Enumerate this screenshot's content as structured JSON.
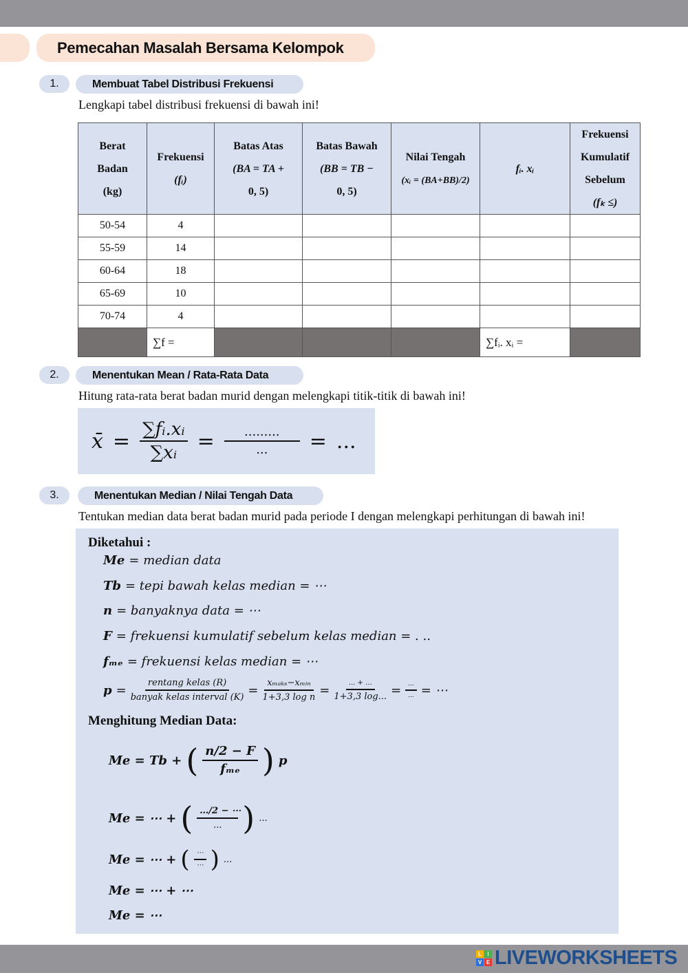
{
  "title": "Pemecahan Masalah Bersama Kelompok",
  "sections": [
    {
      "number": "1.",
      "label": "Membuat Tabel Distribusi Frekuensi",
      "instruction": "Lengkapi tabel distribusi frekuensi di bawah ini!"
    },
    {
      "number": "2.",
      "label": "Menentukan Mean / Rata-Rata Data",
      "instruction": "Hitung rata-rata berat badan murid dengan melengkapi titik-titik di bawah ini!"
    },
    {
      "number": "3.",
      "label": "Menentukan Median / Nilai Tengah Data",
      "instruction": "Tentukan median data berat badan murid pada periode I dengan melengkapi perhitungan di bawah ini!"
    }
  ],
  "table": {
    "headers": [
      [
        "Berat",
        "Badan",
        "(kg)"
      ],
      [
        "Frekuensi",
        "(fᵢ)"
      ],
      [
        "Batas Atas",
        "(BA = TA +",
        "0, 5)"
      ],
      [
        "Batas Bawah",
        "(BB = TB −",
        "0, 5)"
      ],
      [
        "Nilai Tengah",
        "(xᵢ = (BA+BB)/2)"
      ],
      [
        "fᵢ. xᵢ"
      ],
      [
        "Frekuensi",
        "Kumulatif",
        "Sebelum",
        "(fₖ ≤)"
      ]
    ],
    "rows": [
      [
        "50-54",
        "4"
      ],
      [
        "55-59",
        "14"
      ],
      [
        "60-64",
        "18"
      ],
      [
        "65-69",
        "10"
      ],
      [
        "70-74",
        "4"
      ]
    ],
    "sum_f": "∑f =",
    "sum_fx": "∑fᵢ. xᵢ ="
  },
  "mean": {
    "lhs": "x̄",
    "eq": "=",
    "num": "∑fᵢ.xᵢ",
    "den": "∑xᵢ",
    "num2": ".........",
    "den2": "...",
    "result": "..."
  },
  "median": {
    "known_label": "Diketahui :",
    "known": [
      {
        "sym": "Me",
        "text": "= median data"
      },
      {
        "sym": "Tb",
        "text": "= tepi bawah kelas median = ⋯"
      },
      {
        "sym": "n",
        "text": "=  banyaknya data  = ⋯"
      },
      {
        "sym": "F",
        "text": "=  frekuensi kumulatif sebelum kelas median  = . .."
      },
      {
        "sym": "fₘₑ",
        "text": "= frekuensi kelas median = ⋯"
      }
    ],
    "p": {
      "sym": "p",
      "f1n": "rentang kelas (R)",
      "f1d": "banyak kelas interval (K)",
      "f2n": "xₘₐₖₛ−xₘᵢₙ",
      "f2d": "1+3,3 log n",
      "f3n": "... + ...",
      "f3d": "1+3,3 log...",
      "f4n": "...",
      "f4d": "...",
      "end": "= ⋯"
    },
    "calc_label": "Menghitung Median Data:",
    "steps": [
      {
        "lhs": "Me = Tb +",
        "n": "n/2 − F",
        "d": "fₘₑ",
        "tail": "p"
      },
      {
        "lhs": "Me = ⋯ +",
        "n": "…/2 − ⋯",
        "d": "...",
        "tail": "..."
      },
      {
        "lhs": "Me = ⋯ +",
        "n": "⋯",
        "d": "⋯",
        "tail": "..."
      },
      {
        "lhs": "Me = ⋯ + ⋯"
      },
      {
        "lhs": "Me = ⋯"
      }
    ]
  },
  "footer": {
    "logo_text": "LIVEWORKSHEETS",
    "logo_tiles": [
      "L",
      "I",
      "V",
      "E"
    ]
  },
  "colors": {
    "topbar": "#959599",
    "title_pill": "#fbe3d5",
    "section_pill": "#d8e0ef",
    "box": "#d9e1f0",
    "sum_row": "#757171",
    "logo": "#1f4e8c"
  }
}
